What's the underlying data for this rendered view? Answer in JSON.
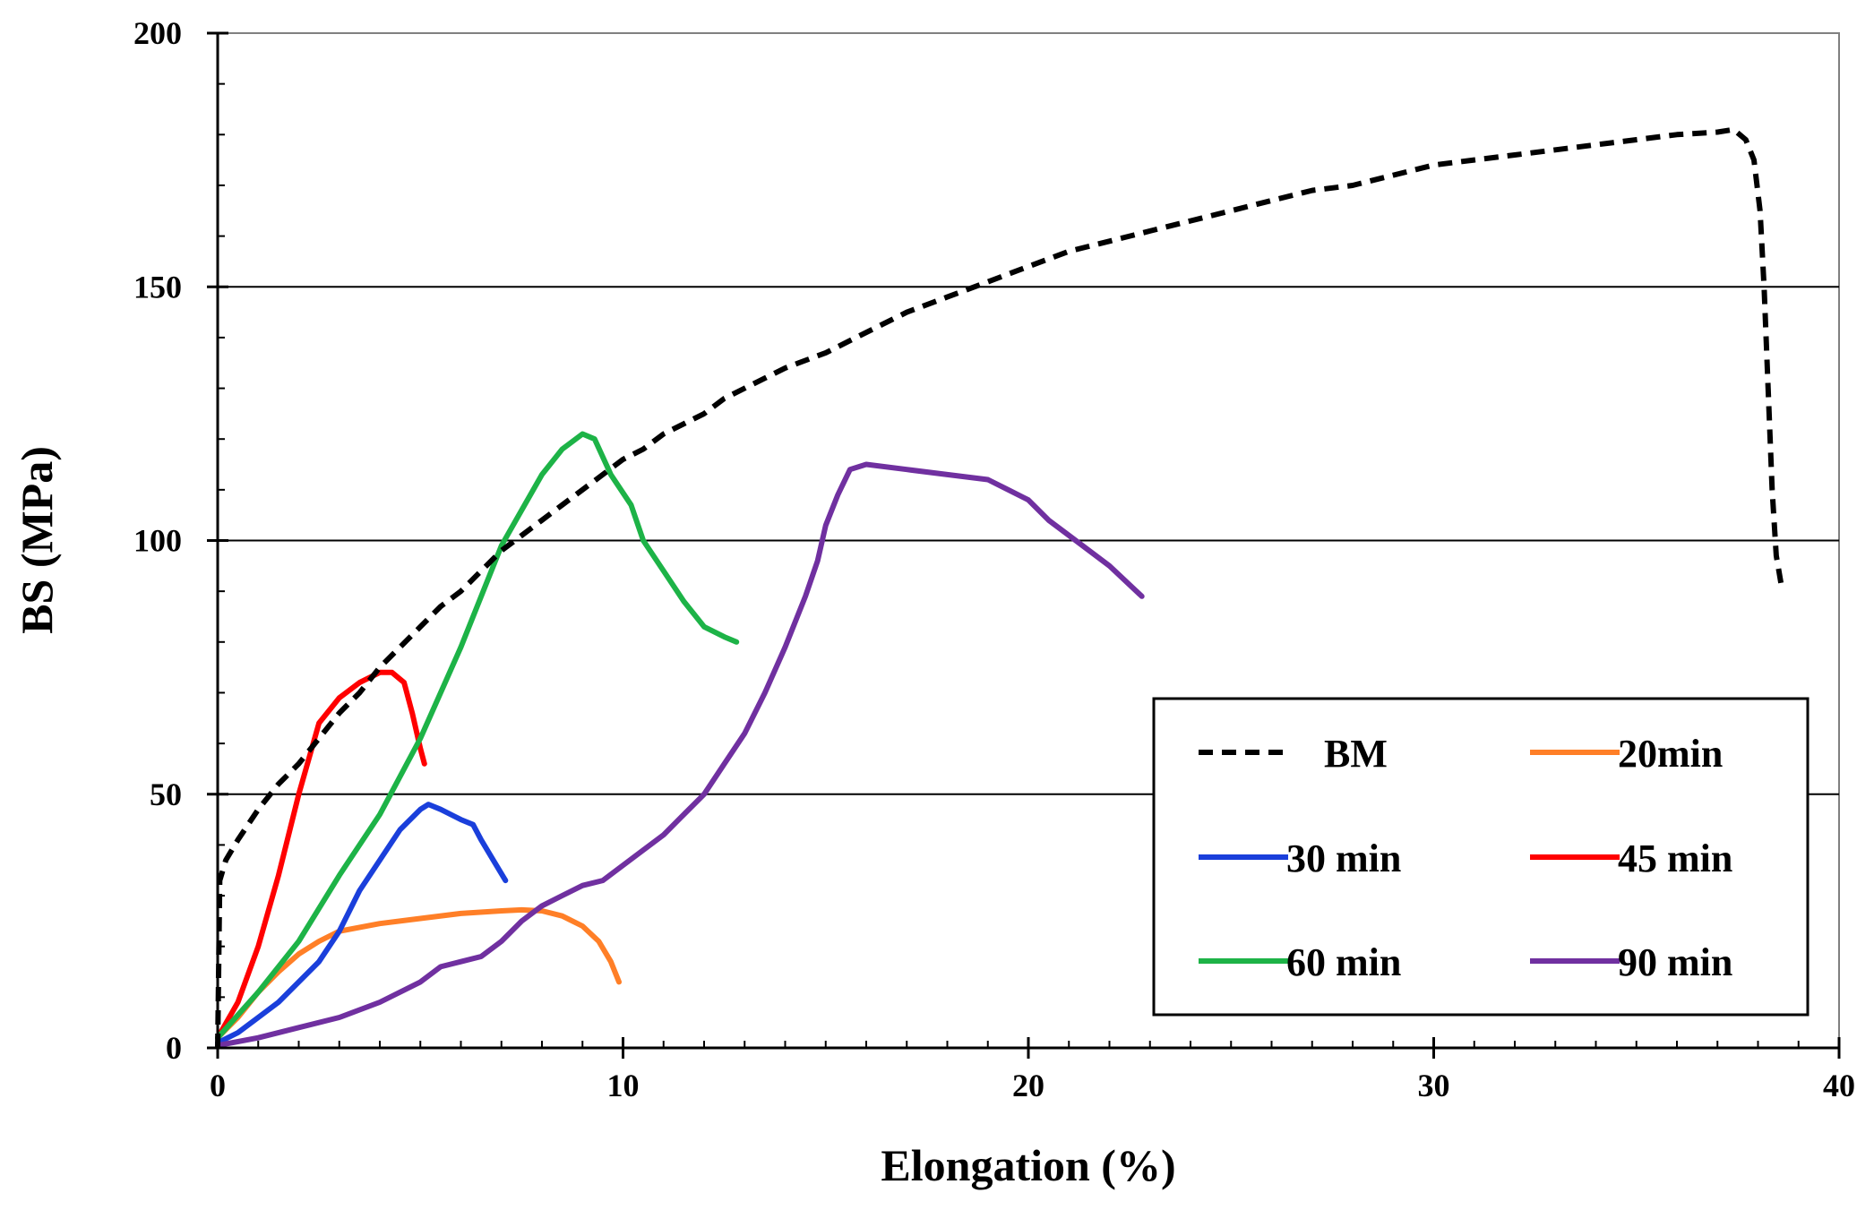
{
  "chart_data": {
    "type": "line",
    "title": "",
    "xlabel": "Elongation (%)",
    "ylabel": "BS (MPa)",
    "xlim": [
      0,
      40
    ],
    "ylim": [
      0,
      200
    ],
    "xticks": [
      0,
      10,
      20,
      30,
      40
    ],
    "yticks": [
      0,
      50,
      100,
      150,
      200
    ],
    "grid": "horizontal major lines at 50, 100, 150",
    "legend_position": "bottom-right",
    "series": [
      {
        "name": "BM",
        "color": "#000000",
        "style": "dashed",
        "points": [
          [
            0,
            0
          ],
          [
            0.05,
            33
          ],
          [
            0.2,
            37
          ],
          [
            0.5,
            41
          ],
          [
            1,
            47
          ],
          [
            1.5,
            52
          ],
          [
            2,
            56
          ],
          [
            2.5,
            61
          ],
          [
            3,
            66
          ],
          [
            3.5,
            70
          ],
          [
            4,
            75
          ],
          [
            4.5,
            79
          ],
          [
            5,
            83
          ],
          [
            5.5,
            87
          ],
          [
            6,
            90
          ],
          [
            6.5,
            94
          ],
          [
            7,
            98
          ],
          [
            7.5,
            101
          ],
          [
            8,
            104
          ],
          [
            8.5,
            107
          ],
          [
            9,
            110
          ],
          [
            9.5,
            113
          ],
          [
            10,
            116
          ],
          [
            10.5,
            118
          ],
          [
            11,
            121
          ],
          [
            11.5,
            123
          ],
          [
            12,
            125
          ],
          [
            12.5,
            128
          ],
          [
            13,
            130
          ],
          [
            13.5,
            132
          ],
          [
            14,
            134
          ],
          [
            15,
            137
          ],
          [
            16,
            141
          ],
          [
            17,
            145
          ],
          [
            18,
            148
          ],
          [
            19,
            151
          ],
          [
            20,
            154
          ],
          [
            21,
            157
          ],
          [
            22,
            159
          ],
          [
            23,
            161
          ],
          [
            24,
            163
          ],
          [
            25,
            165
          ],
          [
            26,
            167
          ],
          [
            27,
            169
          ],
          [
            28,
            170
          ],
          [
            29,
            172
          ],
          [
            30,
            174
          ],
          [
            31,
            175
          ],
          [
            32,
            176
          ],
          [
            33,
            177
          ],
          [
            34,
            178
          ],
          [
            35,
            179
          ],
          [
            36,
            180
          ],
          [
            37,
            180.5
          ],
          [
            37.4,
            181
          ],
          [
            37.7,
            179
          ],
          [
            37.9,
            175
          ],
          [
            38.05,
            165
          ],
          [
            38.15,
            150
          ],
          [
            38.25,
            130
          ],
          [
            38.35,
            110
          ],
          [
            38.45,
            97
          ],
          [
            38.6,
            90
          ]
        ]
      },
      {
        "name": "20min",
        "color": "#FF7F27",
        "style": "solid",
        "points": [
          [
            0,
            2
          ],
          [
            0.5,
            6
          ],
          [
            1,
            11
          ],
          [
            1.5,
            15
          ],
          [
            2,
            18.5
          ],
          [
            2.5,
            21
          ],
          [
            3,
            23
          ],
          [
            4,
            24.5
          ],
          [
            5,
            25.5
          ],
          [
            6,
            26.5
          ],
          [
            7,
            27
          ],
          [
            7.5,
            27.2
          ],
          [
            8,
            27
          ],
          [
            8.5,
            26
          ],
          [
            9,
            24
          ],
          [
            9.4,
            21
          ],
          [
            9.7,
            17
          ],
          [
            9.9,
            13
          ]
        ]
      },
      {
        "name": "30 min",
        "color": "#1A3FDB",
        "style": "solid",
        "points": [
          [
            0,
            1
          ],
          [
            0.5,
            3
          ],
          [
            1,
            6
          ],
          [
            1.5,
            9
          ],
          [
            2,
            13
          ],
          [
            2.5,
            17
          ],
          [
            3,
            23
          ],
          [
            3.5,
            31
          ],
          [
            4,
            37
          ],
          [
            4.5,
            43
          ],
          [
            5,
            47
          ],
          [
            5.2,
            48
          ],
          [
            5.5,
            47
          ],
          [
            6,
            45
          ],
          [
            6.3,
            44
          ],
          [
            6.5,
            41
          ],
          [
            6.8,
            37
          ],
          [
            7.1,
            33
          ]
        ]
      },
      {
        "name": "45 min",
        "color": "#FF0000",
        "style": "solid",
        "points": [
          [
            0,
            2
          ],
          [
            0.5,
            9
          ],
          [
            1,
            20
          ],
          [
            1.5,
            34
          ],
          [
            2,
            50
          ],
          [
            2.5,
            64
          ],
          [
            3,
            69
          ],
          [
            3.5,
            72
          ],
          [
            4,
            74
          ],
          [
            4.3,
            74
          ],
          [
            4.6,
            72
          ],
          [
            4.8,
            66
          ],
          [
            5,
            59
          ],
          [
            5.1,
            56
          ]
        ]
      },
      {
        "name": "60 min",
        "color": "#1DB347",
        "style": "solid",
        "points": [
          [
            0,
            2
          ],
          [
            1,
            11
          ],
          [
            2,
            21
          ],
          [
            3,
            34
          ],
          [
            4,
            46
          ],
          [
            5,
            61
          ],
          [
            6,
            79
          ],
          [
            7,
            99
          ],
          [
            7.5,
            106
          ],
          [
            8,
            113
          ],
          [
            8.5,
            118
          ],
          [
            9,
            121
          ],
          [
            9.3,
            120
          ],
          [
            9.7,
            113
          ],
          [
            10.2,
            107
          ],
          [
            10.5,
            100
          ],
          [
            11,
            94
          ],
          [
            11.5,
            88
          ],
          [
            12,
            83
          ],
          [
            12.5,
            81
          ],
          [
            12.8,
            80
          ]
        ]
      },
      {
        "name": "90 min",
        "color": "#7030A0",
        "style": "solid",
        "points": [
          [
            0,
            0.5
          ],
          [
            1,
            2
          ],
          [
            2,
            4
          ],
          [
            3,
            6
          ],
          [
            4,
            9
          ],
          [
            5,
            13
          ],
          [
            5.5,
            16
          ],
          [
            6,
            17
          ],
          [
            6.5,
            18
          ],
          [
            7,
            21
          ],
          [
            7.5,
            25
          ],
          [
            8,
            28
          ],
          [
            8.5,
            30
          ],
          [
            9,
            32
          ],
          [
            9.5,
            33
          ],
          [
            10,
            36
          ],
          [
            10.5,
            39
          ],
          [
            11,
            42
          ],
          [
            11.5,
            46
          ],
          [
            12,
            50
          ],
          [
            12.5,
            56
          ],
          [
            13,
            62
          ],
          [
            13.5,
            70
          ],
          [
            14,
            79
          ],
          [
            14.5,
            89
          ],
          [
            14.8,
            96
          ],
          [
            15,
            103
          ],
          [
            15.3,
            109
          ],
          [
            15.6,
            114
          ],
          [
            16,
            115
          ],
          [
            17,
            114
          ],
          [
            18,
            113
          ],
          [
            19,
            112
          ],
          [
            19.5,
            110
          ],
          [
            20,
            108
          ],
          [
            20.5,
            104
          ],
          [
            21,
            101
          ],
          [
            22,
            95
          ],
          [
            22.8,
            89
          ]
        ]
      }
    ],
    "legend": [
      {
        "label": "BM",
        "series_index": 0
      },
      {
        "label": "20min",
        "series_index": 1
      },
      {
        "label": "30 min",
        "series_index": 2
      },
      {
        "label": "45 min",
        "series_index": 3
      },
      {
        "label": "60 min",
        "series_index": 4
      },
      {
        "label": "90 min",
        "series_index": 5
      }
    ]
  }
}
